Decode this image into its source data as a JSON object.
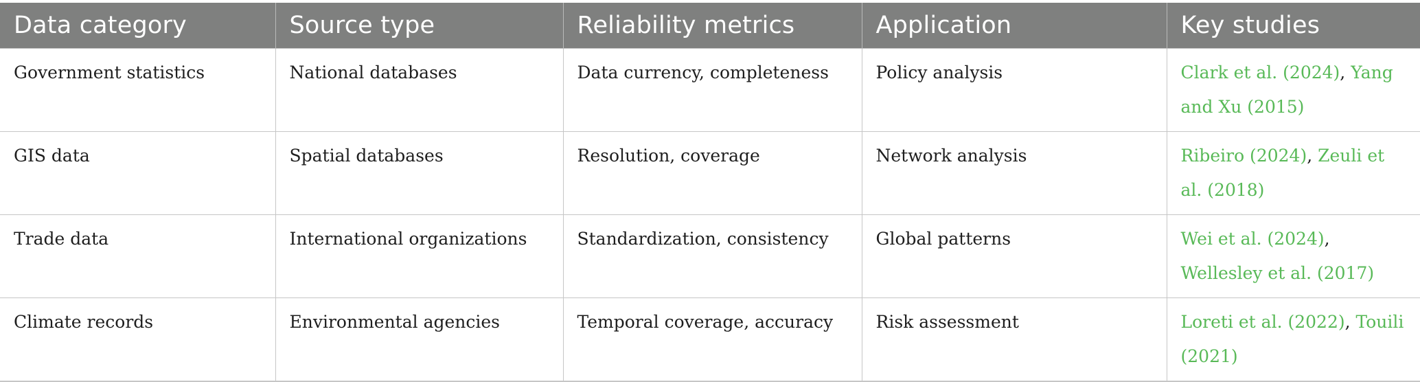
{
  "table": {
    "headers": [
      "Data category",
      "Source type",
      "Reliability metrics",
      "Application",
      "Key studies"
    ],
    "rows": [
      {
        "category": "Government statistics",
        "source": "National databases",
        "reliability": "Data currency, completeness",
        "application": "Policy analysis",
        "studies": [
          "Clark et al. (2024)",
          "Yang and Xu (2015)"
        ]
      },
      {
        "category": "GIS data",
        "source": "Spatial databases",
        "reliability": "Resolution, coverage",
        "application": "Network analysis",
        "studies": [
          "Ribeiro (2024)",
          "Zeuli et al. (2018)"
        ]
      },
      {
        "category": "Trade data",
        "source": "International organizations",
        "reliability": "Standardization, consistency",
        "application": "Global patterns",
        "studies": [
          "Wei et al. (2024)",
          "Wellesley et al. (2017)"
        ]
      },
      {
        "category": "Climate records",
        "source": "Environmental agencies",
        "reliability": "Temporal coverage, accuracy",
        "application": "Risk assessment",
        "studies": [
          "Loreti et al. (2022)",
          "Touili (2021)"
        ]
      }
    ],
    "separator": ", "
  },
  "colors": {
    "header_bg": "#7f807f",
    "header_text": "#ffffff",
    "link": "#58b957",
    "body_text": "#1e1e1e",
    "rule": "#c6c6c6"
  }
}
